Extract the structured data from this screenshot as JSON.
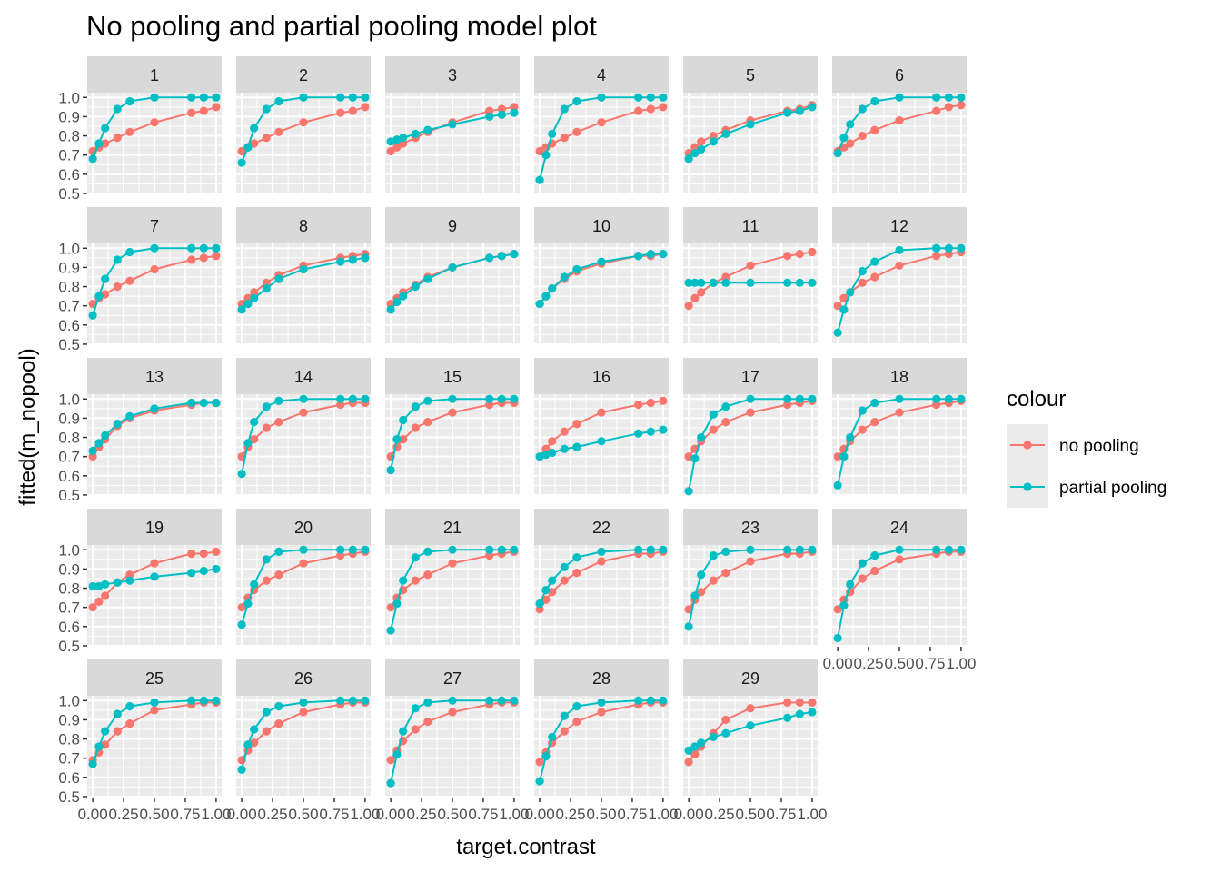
{
  "chart_data": {
    "type": "line",
    "title": "No pooling and partial pooling model plot",
    "xlabel": "target.contrast",
    "ylabel": "fitted(m_nopool)",
    "xlim": [
      0,
      1
    ],
    "ylim": [
      0.5,
      1.0
    ],
    "x_ticks": [
      "0.00",
      "0.25",
      "0.50",
      "0.75",
      "1.00"
    ],
    "y_ticks": [
      "0.5",
      "0.6",
      "0.7",
      "0.8",
      "0.9",
      "1.0"
    ],
    "grid": true,
    "facet_columns": 6,
    "legend": {
      "title": "colour",
      "position": "right",
      "entries": [
        {
          "label": "no pooling",
          "color": "#F8766D"
        },
        {
          "label": "partial pooling",
          "color": "#00BFC4"
        }
      ]
    },
    "x": [
      0,
      0.05,
      0.1,
      0.2,
      0.3,
      0.5,
      0.8,
      0.9,
      1.0
    ],
    "panels": [
      {
        "label": "1",
        "no_pooling": [
          0.72,
          0.74,
          0.76,
          0.79,
          0.82,
          0.87,
          0.92,
          0.93,
          0.95
        ],
        "partial_pooling": [
          0.68,
          0.76,
          0.84,
          0.94,
          0.98,
          1.0,
          1.0,
          1.0,
          1.0
        ]
      },
      {
        "label": "2",
        "no_pooling": [
          0.72,
          0.74,
          0.76,
          0.79,
          0.82,
          0.87,
          0.92,
          0.93,
          0.95
        ],
        "partial_pooling": [
          0.66,
          0.74,
          0.84,
          0.94,
          0.98,
          1.0,
          1.0,
          1.0,
          1.0
        ]
      },
      {
        "label": "3",
        "no_pooling": [
          0.72,
          0.74,
          0.76,
          0.79,
          0.82,
          0.87,
          0.93,
          0.94,
          0.95
        ],
        "partial_pooling": [
          0.77,
          0.78,
          0.79,
          0.81,
          0.83,
          0.86,
          0.9,
          0.91,
          0.92
        ]
      },
      {
        "label": "4",
        "no_pooling": [
          0.72,
          0.74,
          0.76,
          0.79,
          0.82,
          0.87,
          0.93,
          0.94,
          0.95
        ],
        "partial_pooling": [
          0.57,
          0.7,
          0.81,
          0.94,
          0.98,
          1.0,
          1.0,
          1.0,
          1.0
        ]
      },
      {
        "label": "5",
        "no_pooling": [
          0.71,
          0.74,
          0.77,
          0.8,
          0.83,
          0.88,
          0.93,
          0.94,
          0.96
        ],
        "partial_pooling": [
          0.68,
          0.71,
          0.73,
          0.77,
          0.81,
          0.86,
          0.92,
          0.93,
          0.95
        ]
      },
      {
        "label": "6",
        "no_pooling": [
          0.72,
          0.74,
          0.76,
          0.8,
          0.83,
          0.88,
          0.93,
          0.95,
          0.96
        ],
        "partial_pooling": [
          0.71,
          0.79,
          0.86,
          0.94,
          0.98,
          1.0,
          1.0,
          1.0,
          1.0
        ]
      },
      {
        "label": "7",
        "no_pooling": [
          0.71,
          0.74,
          0.76,
          0.8,
          0.83,
          0.89,
          0.94,
          0.95,
          0.96
        ],
        "partial_pooling": [
          0.65,
          0.75,
          0.84,
          0.94,
          0.98,
          1.0,
          1.0,
          1.0,
          1.0
        ]
      },
      {
        "label": "8",
        "no_pooling": [
          0.71,
          0.74,
          0.77,
          0.82,
          0.86,
          0.91,
          0.95,
          0.96,
          0.97
        ],
        "partial_pooling": [
          0.68,
          0.71,
          0.74,
          0.79,
          0.84,
          0.89,
          0.93,
          0.94,
          0.95
        ]
      },
      {
        "label": "9",
        "no_pooling": [
          0.71,
          0.74,
          0.77,
          0.81,
          0.85,
          0.9,
          0.95,
          0.96,
          0.97
        ],
        "partial_pooling": [
          0.68,
          0.72,
          0.75,
          0.8,
          0.84,
          0.9,
          0.95,
          0.96,
          0.97
        ]
      },
      {
        "label": "10",
        "no_pooling": [
          0.71,
          0.75,
          0.79,
          0.84,
          0.88,
          0.92,
          0.96,
          0.96,
          0.97
        ],
        "partial_pooling": [
          0.71,
          0.75,
          0.79,
          0.85,
          0.89,
          0.93,
          0.96,
          0.97,
          0.97
        ]
      },
      {
        "label": "11",
        "no_pooling": [
          0.7,
          0.74,
          0.77,
          0.82,
          0.85,
          0.91,
          0.96,
          0.97,
          0.98
        ],
        "partial_pooling": [
          0.82,
          0.82,
          0.82,
          0.82,
          0.82,
          0.82,
          0.82,
          0.82,
          0.82
        ]
      },
      {
        "label": "12",
        "no_pooling": [
          0.7,
          0.74,
          0.77,
          0.82,
          0.85,
          0.91,
          0.96,
          0.97,
          0.98
        ],
        "partial_pooling": [
          0.56,
          0.68,
          0.77,
          0.88,
          0.93,
          0.99,
          1.0,
          1.0,
          1.0
        ]
      },
      {
        "label": "13",
        "no_pooling": [
          0.7,
          0.75,
          0.79,
          0.86,
          0.9,
          0.94,
          0.97,
          0.98,
          0.98
        ],
        "partial_pooling": [
          0.73,
          0.77,
          0.81,
          0.87,
          0.91,
          0.95,
          0.98,
          0.98,
          0.98
        ]
      },
      {
        "label": "14",
        "no_pooling": [
          0.7,
          0.75,
          0.79,
          0.85,
          0.88,
          0.93,
          0.97,
          0.98,
          0.98
        ],
        "partial_pooling": [
          0.61,
          0.77,
          0.88,
          0.96,
          0.99,
          1.0,
          1.0,
          1.0,
          1.0
        ]
      },
      {
        "label": "15",
        "no_pooling": [
          0.7,
          0.75,
          0.79,
          0.85,
          0.88,
          0.93,
          0.97,
          0.98,
          0.98
        ],
        "partial_pooling": [
          0.63,
          0.79,
          0.89,
          0.96,
          0.99,
          1.0,
          1.0,
          1.0,
          1.0
        ]
      },
      {
        "label": "16",
        "no_pooling": [
          0.7,
          0.74,
          0.78,
          0.83,
          0.87,
          0.93,
          0.97,
          0.98,
          0.99
        ],
        "partial_pooling": [
          0.7,
          0.71,
          0.72,
          0.74,
          0.75,
          0.78,
          0.82,
          0.83,
          0.84
        ]
      },
      {
        "label": "17",
        "no_pooling": [
          0.7,
          0.74,
          0.78,
          0.84,
          0.88,
          0.93,
          0.97,
          0.98,
          0.99
        ],
        "partial_pooling": [
          0.52,
          0.69,
          0.8,
          0.92,
          0.96,
          1.0,
          1.0,
          1.0,
          1.0
        ]
      },
      {
        "label": "18",
        "no_pooling": [
          0.7,
          0.74,
          0.78,
          0.84,
          0.88,
          0.93,
          0.97,
          0.98,
          0.99
        ],
        "partial_pooling": [
          0.55,
          0.7,
          0.8,
          0.94,
          0.98,
          1.0,
          1.0,
          1.0,
          1.0
        ]
      },
      {
        "label": "19",
        "no_pooling": [
          0.7,
          0.73,
          0.76,
          0.83,
          0.87,
          0.93,
          0.98,
          0.98,
          0.99
        ],
        "partial_pooling": [
          0.81,
          0.81,
          0.82,
          0.83,
          0.84,
          0.86,
          0.88,
          0.89,
          0.9
        ]
      },
      {
        "label": "20",
        "no_pooling": [
          0.7,
          0.75,
          0.79,
          0.84,
          0.87,
          0.93,
          0.97,
          0.98,
          0.99
        ],
        "partial_pooling": [
          0.61,
          0.72,
          0.82,
          0.95,
          0.99,
          1.0,
          1.0,
          1.0,
          1.0
        ]
      },
      {
        "label": "21",
        "no_pooling": [
          0.7,
          0.75,
          0.79,
          0.84,
          0.87,
          0.93,
          0.97,
          0.98,
          0.99
        ],
        "partial_pooling": [
          0.58,
          0.72,
          0.84,
          0.96,
          0.99,
          1.0,
          1.0,
          1.0,
          1.0
        ]
      },
      {
        "label": "22",
        "no_pooling": [
          0.69,
          0.74,
          0.78,
          0.84,
          0.88,
          0.94,
          0.98,
          0.98,
          0.99
        ],
        "partial_pooling": [
          0.72,
          0.79,
          0.84,
          0.91,
          0.96,
          0.99,
          1.0,
          1.0,
          1.0
        ]
      },
      {
        "label": "23",
        "no_pooling": [
          0.69,
          0.74,
          0.78,
          0.84,
          0.88,
          0.94,
          0.98,
          0.98,
          0.99
        ],
        "partial_pooling": [
          0.6,
          0.76,
          0.87,
          0.97,
          0.99,
          1.0,
          1.0,
          1.0,
          1.0
        ]
      },
      {
        "label": "24",
        "no_pooling": [
          0.69,
          0.74,
          0.78,
          0.85,
          0.89,
          0.95,
          0.98,
          0.99,
          0.99
        ],
        "partial_pooling": [
          0.54,
          0.71,
          0.82,
          0.93,
          0.97,
          1.0,
          1.0,
          1.0,
          1.0
        ]
      },
      {
        "label": "25",
        "no_pooling": [
          0.69,
          0.73,
          0.77,
          0.84,
          0.88,
          0.95,
          0.98,
          0.99,
          0.99
        ],
        "partial_pooling": [
          0.67,
          0.76,
          0.84,
          0.93,
          0.97,
          0.99,
          1.0,
          1.0,
          1.0
        ]
      },
      {
        "label": "26",
        "no_pooling": [
          0.69,
          0.74,
          0.78,
          0.84,
          0.88,
          0.94,
          0.98,
          0.99,
          0.99
        ],
        "partial_pooling": [
          0.64,
          0.77,
          0.85,
          0.94,
          0.97,
          0.99,
          1.0,
          1.0,
          1.0
        ]
      },
      {
        "label": "27",
        "no_pooling": [
          0.69,
          0.74,
          0.79,
          0.85,
          0.89,
          0.94,
          0.98,
          0.99,
          0.99
        ],
        "partial_pooling": [
          0.57,
          0.72,
          0.84,
          0.96,
          0.99,
          1.0,
          1.0,
          1.0,
          1.0
        ]
      },
      {
        "label": "28",
        "no_pooling": [
          0.68,
          0.73,
          0.78,
          0.84,
          0.89,
          0.94,
          0.98,
          0.99,
          0.99
        ],
        "partial_pooling": [
          0.58,
          0.71,
          0.81,
          0.92,
          0.97,
          0.99,
          1.0,
          1.0,
          1.0
        ]
      },
      {
        "label": "29",
        "no_pooling": [
          0.68,
          0.72,
          0.76,
          0.83,
          0.9,
          0.96,
          0.99,
          0.99,
          0.99
        ],
        "partial_pooling": [
          0.74,
          0.76,
          0.78,
          0.81,
          0.83,
          0.87,
          0.91,
          0.93,
          0.94
        ]
      }
    ]
  }
}
